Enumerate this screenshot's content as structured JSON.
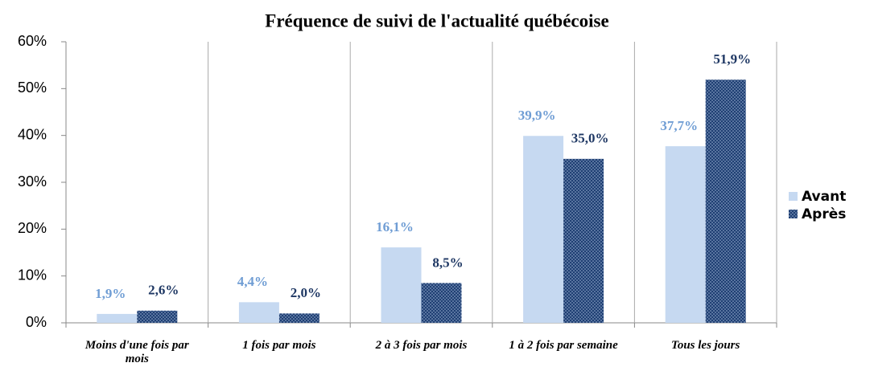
{
  "chart_data": {
    "type": "bar",
    "title": "Fréquence de suivi de l'actualité québécoise",
    "categories": [
      "Moins d'une fois par mois",
      "1 fois par mois",
      "2 à 3 fois par mois",
      "1 à 2 fois par semaine",
      "Tous les jours"
    ],
    "series": [
      {
        "name": "Avant",
        "color": "#c6d9f1",
        "label_color": "#6f9dd4",
        "values": [
          1.9,
          4.4,
          16.1,
          39.9,
          37.7
        ],
        "value_labels": [
          "1,9%",
          "4,4%",
          "16,1%",
          "39,9%",
          "37,7%"
        ]
      },
      {
        "name": "Après",
        "color": "#1f3f73",
        "label_color": "#1f3864",
        "pattern": "dots",
        "values": [
          2.6,
          2.0,
          8.5,
          35.0,
          51.9
        ],
        "value_labels": [
          "2,6%",
          "2,0%",
          "8,5%",
          "35,0%",
          "51,9%"
        ]
      }
    ],
    "ylim": [
      0,
      60
    ],
    "yticks": [
      {
        "value": 0,
        "label": "0%"
      },
      {
        "value": 10,
        "label": "10%"
      },
      {
        "value": 20,
        "label": "20%"
      },
      {
        "value": 30,
        "label": "30%"
      },
      {
        "value": 40,
        "label": "40%"
      },
      {
        "value": 50,
        "label": "50%"
      },
      {
        "value": 60,
        "label": "60%"
      }
    ],
    "legend": "right"
  }
}
